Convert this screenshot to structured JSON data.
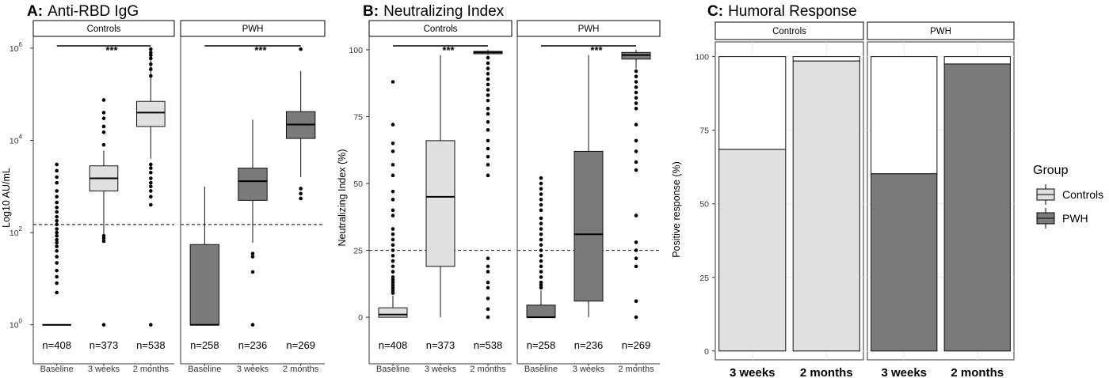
{
  "colors": {
    "controls": "#e0e0e0",
    "pwh": "#7a7a7a",
    "background": "#ffffff",
    "grid": "#ebebeb"
  },
  "chart_data": [
    {
      "type": "boxplot",
      "panel_letter": "A:",
      "title": "Anti-RBD IgG",
      "ylabel": "Log10 AU/mL",
      "yscale": "log10",
      "ylim": [
        0.75,
        1800000
      ],
      "yticks": [
        {
          "base": "10",
          "exp": "0",
          "value": 1
        },
        {
          "base": "10",
          "exp": "2",
          "value": 100
        },
        {
          "base": "10",
          "exp": "4",
          "value": 10000
        },
        {
          "base": "10",
          "exp": "6",
          "value": 1000000
        }
      ],
      "threshold": 150,
      "categories": [
        "Baseline",
        "3 weeks",
        "2 months"
      ],
      "facets": [
        {
          "name": "Controls",
          "fill": "controls",
          "boxes": [
            {
              "n": "n=408",
              "q1": 1,
              "median": 1,
              "q3": 1,
              "lo": 1,
              "hi": 1,
              "outliers": [
                3000,
                2200,
                1600,
                1200,
                800,
                600,
                450,
                350,
                280,
                220,
                180,
                150,
                120,
                100,
                85,
                70,
                60,
                50,
                40,
                30,
                22,
                15,
                11,
                8,
                5
              ]
            },
            {
              "n": "n=373",
              "q1": 800,
              "median": 1500,
              "q3": 2800,
              "lo": 90,
              "hi": 6000,
              "outliers": [
                75000,
                40000,
                30000,
                20000,
                15000,
                8000,
                85,
                75,
                65,
                1
              ]
            },
            {
              "n": "n=538",
              "q1": 20000,
              "median": 40000,
              "q3": 70000,
              "lo": 4000,
              "hi": 950000,
              "outliers": [
                950000,
                800000,
                700000,
                600000,
                450000,
                350000,
                250000,
                3000,
                2500,
                2000,
                1500,
                1200,
                1000,
                800,
                600,
                400,
                1
              ]
            }
          ],
          "sig": {
            "from": 0,
            "to": 2,
            "label": "***"
          }
        },
        {
          "name": "PWH",
          "fill": "pwh",
          "boxes": [
            {
              "n": "n=258",
              "q1": 1,
              "median": 1,
              "q3": 55,
              "lo": 1,
              "hi": 1000,
              "outliers": []
            },
            {
              "n": "n=236",
              "q1": 500,
              "median": 1300,
              "q3": 2500,
              "lo": 60,
              "hi": 28000,
              "outliers": [
                35,
                30,
                14,
                1
              ]
            },
            {
              "n": "n=269",
              "q1": 11000,
              "median": 22000,
              "q3": 42000,
              "lo": 1600,
              "hi": 320000,
              "outliers": [
                950000,
                900,
                700,
                550
              ]
            }
          ],
          "sig": {
            "from": 0,
            "to": 2,
            "label": "***"
          }
        }
      ]
    },
    {
      "type": "boxplot",
      "panel_letter": "B:",
      "title": "Neutralizing Index",
      "ylabel": "Neutralizing Index (%)",
      "yscale": "linear",
      "ylim": [
        -5,
        105
      ],
      "yticks": [
        {
          "label": "0",
          "value": 0
        },
        {
          "label": "25",
          "value": 25
        },
        {
          "label": "50",
          "value": 50
        },
        {
          "label": "75",
          "value": 75
        },
        {
          "label": "100",
          "value": 100
        }
      ],
      "threshold": 25,
      "categories": [
        "Baseline",
        "3 weeks",
        "2 months"
      ],
      "facets": [
        {
          "name": "Controls",
          "fill": "controls",
          "boxes": [
            {
              "n": "n=408",
              "q1": 0,
              "median": 1,
              "q3": 3.5,
              "lo": 0,
              "hi": 8,
              "outliers": [
                88,
                72,
                65,
                62,
                57,
                53,
                47,
                44,
                40,
                38,
                33,
                31,
                29,
                27,
                25,
                23,
                21,
                19,
                17,
                15,
                14,
                13,
                12,
                11,
                10,
                9
              ]
            },
            {
              "n": "n=373",
              "q1": 19,
              "median": 45,
              "q3": 66,
              "lo": 0,
              "hi": 98,
              "outliers": []
            },
            {
              "n": "n=538",
              "q1": 98.5,
              "median": 99,
              "q3": 99.4,
              "lo": 98,
              "hi": 100,
              "outliers": [
                97,
                95,
                93,
                91,
                89,
                87,
                85,
                83,
                81,
                78,
                76,
                73,
                70,
                66,
                63,
                60,
                57,
                53,
                22,
                19,
                17,
                13,
                11,
                7,
                3,
                0
              ]
            }
          ],
          "sig": {
            "from": 0,
            "to": 2,
            "label": "***"
          }
        },
        {
          "name": "PWH",
          "fill": "pwh",
          "boxes": [
            {
              "n": "n=258",
              "q1": 0,
              "median": 0,
              "q3": 4.5,
              "lo": 0,
              "hi": 10,
              "outliers": [
                52,
                50,
                48,
                46,
                44,
                42,
                40,
                37,
                35,
                33,
                31,
                29,
                27,
                25,
                23,
                21,
                19,
                17,
                15,
                13,
                12,
                11
              ]
            },
            {
              "n": "n=236",
              "q1": 6,
              "median": 31,
              "q3": 62,
              "lo": 0,
              "hi": 98,
              "outliers": []
            },
            {
              "n": "n=269",
              "q1": 96.5,
              "median": 98,
              "q3": 99,
              "lo": 93,
              "hi": 100,
              "outliers": [
                92,
                90,
                88,
                86,
                84,
                82,
                80,
                78,
                72,
                66,
                62,
                58,
                55,
                38,
                28,
                25,
                22,
                19,
                6,
                0
              ]
            }
          ],
          "sig": {
            "from": 0,
            "to": 2,
            "label": "***"
          }
        }
      ]
    },
    {
      "type": "bar",
      "stacked": true,
      "panel_letter": "C:",
      "title": "Humoral Response",
      "ylabel": "Positive response (%)",
      "ylim": [
        -3,
        105
      ],
      "yticks": [
        {
          "label": "0",
          "value": 0
        },
        {
          "label": "25",
          "value": 25
        },
        {
          "label": "50",
          "value": 50
        },
        {
          "label": "75",
          "value": 75
        },
        {
          "label": "100",
          "value": 100
        }
      ],
      "categories": [
        "3 weeks",
        "2 months"
      ],
      "facets": [
        {
          "name": "Controls",
          "fill": "controls",
          "values": [
            68.5,
            98.5
          ]
        },
        {
          "name": "PWH",
          "fill": "pwh",
          "values": [
            60.2,
            97.5
          ]
        }
      ],
      "legend": {
        "title": "Group",
        "position": "right",
        "entries": [
          {
            "label": "Controls",
            "fill": "controls"
          },
          {
            "label": "PWH",
            "fill": "pwh"
          }
        ]
      }
    }
  ]
}
